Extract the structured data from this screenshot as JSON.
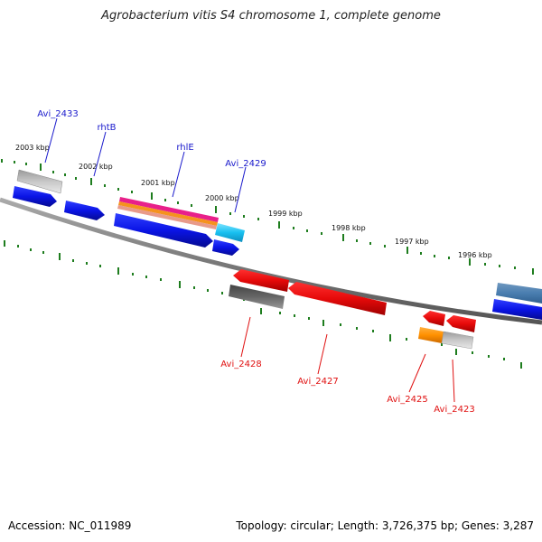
{
  "title": "Agrobacterium vitis S4 chromosome 1, complete genome",
  "footer": {
    "accession": "Accession: NC_011989",
    "summary": "Topology: circular; Length: 3,726,375 bp; Genes: 3,287"
  },
  "colors": {
    "forward_gene": "#0a14e6",
    "reverse_gene": "#e60a0a",
    "forward_label": "#1a1acc",
    "reverse_label": "#e01010",
    "tick": "#1e7d1e",
    "backbone": "#808080"
  },
  "kbp_labels": [
    "2003 kbp",
    "2002 kbp",
    "2001 kbp",
    "2000 kbp",
    "1999 kbp",
    "1998 kbp",
    "1997 kbp",
    "1996 kbp"
  ],
  "gene_labels_forward": [
    "Avi_2433",
    "rhtB",
    "rhlE",
    "Avi_2429"
  ],
  "gene_labels_reverse": [
    "Avi_2428",
    "Avi_2427",
    "Avi_2425",
    "Avi_2423"
  ]
}
